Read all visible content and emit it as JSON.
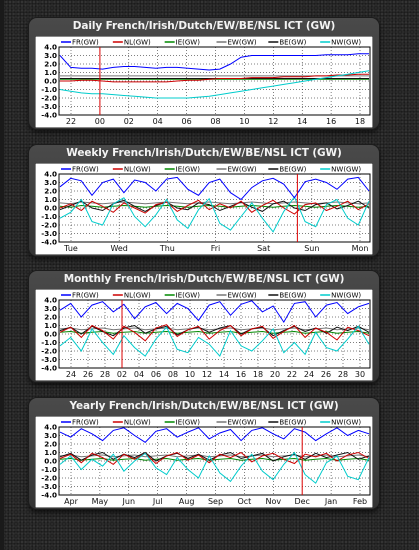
{
  "page": {
    "background": "#2a2a2a"
  },
  "series_colors": {
    "FR(GW)": "#0000ff",
    "NL(GW)": "#cc0000",
    "IE(GW)": "#008800",
    "EW(GW)": "#777777",
    "BE(GW)": "#111111",
    "NW(GW)": "#00cccc"
  },
  "chart_data": [
    {
      "type": "line",
      "title": "Daily French/Irish/Dutch/EW/BE/NSL ICT (GW)",
      "legend": [
        "FR(GW)",
        "NL(GW)",
        "IE(GW)",
        "EW(GW)",
        "BE(GW)",
        "NW(GW)"
      ],
      "legend_placement": "top",
      "ylim": [
        -4.0,
        4.0
      ],
      "y_ticks": [
        "4.0",
        "3.0",
        "2.0",
        "1.0",
        "0.0",
        "-1.0",
        "-2.0",
        "-3.0",
        "-4.0"
      ],
      "x_ticks": [
        "22",
        "00",
        "02",
        "04",
        "06",
        "08",
        "10",
        "12",
        "14",
        "16",
        "18"
      ],
      "grid": true,
      "marker_tick_index": 1,
      "series": [
        {
          "name": "FR(GW)",
          "values": [
            3.0,
            1.6,
            1.5,
            1.5,
            1.4,
            1.6,
            1.7,
            1.7,
            1.6,
            1.5,
            1.6,
            1.6,
            1.5,
            1.4,
            1.3,
            1.4,
            2.0,
            2.8,
            3.0,
            3.0,
            3.0,
            3.0,
            3.0,
            3.0,
            3.0,
            3.1,
            3.1,
            3.1,
            3.2,
            3.2
          ]
        },
        {
          "name": "NL(GW)",
          "values": [
            0.0,
            0.0,
            0.1,
            0.1,
            0.0,
            -0.1,
            -0.1,
            -0.1,
            -0.1,
            -0.1,
            -0.1,
            0.0,
            0.1,
            0.1,
            0.2,
            0.3,
            0.3,
            0.3,
            0.4,
            0.4,
            0.4,
            0.5,
            0.5,
            0.5,
            0.6,
            0.6,
            0.7,
            0.7,
            0.8,
            0.8
          ]
        },
        {
          "name": "IE(GW)",
          "values": [
            0.2,
            0.2,
            0.2,
            0.2,
            0.2,
            0.2,
            0.2,
            0.2,
            0.2,
            0.2,
            0.2,
            0.2,
            0.2,
            0.2,
            0.2,
            0.2,
            0.2,
            0.2,
            0.2,
            0.2,
            0.2,
            0.2,
            0.2,
            0.2,
            0.2,
            0.2,
            0.2,
            0.2,
            0.2,
            0.2
          ]
        },
        {
          "name": "EW(GW)",
          "values": [
            0.6,
            0.6,
            0.6,
            0.6,
            0.6,
            0.6,
            0.6,
            0.6,
            0.6,
            0.6,
            0.6,
            0.6,
            0.6,
            0.6,
            0.6,
            0.6,
            0.6,
            0.6,
            0.6,
            0.6,
            0.6,
            0.6,
            0.6,
            0.6,
            0.6,
            0.6,
            0.6,
            0.6,
            0.6,
            0.6
          ]
        },
        {
          "name": "BE(GW)",
          "values": [
            0.3,
            0.3,
            0.3,
            0.3,
            0.3,
            0.3,
            0.3,
            0.3,
            0.3,
            0.3,
            0.3,
            0.3,
            0.3,
            0.3,
            0.3,
            0.3,
            0.3,
            0.3,
            0.3,
            0.3,
            0.3,
            0.3,
            0.3,
            0.3,
            0.3,
            0.3,
            0.3,
            0.3,
            0.3,
            0.3
          ]
        },
        {
          "name": "NW(GW)",
          "values": [
            -1.0,
            -1.2,
            -1.4,
            -1.5,
            -1.5,
            -1.6,
            -1.7,
            -1.8,
            -1.9,
            -2.0,
            -2.0,
            -2.0,
            -2.0,
            -1.9,
            -1.8,
            -1.6,
            -1.4,
            -1.2,
            -1.0,
            -0.8,
            -0.6,
            -0.4,
            -0.2,
            0.0,
            0.2,
            0.4,
            0.6,
            0.8,
            1.0,
            1.2
          ]
        }
      ]
    },
    {
      "type": "line",
      "title": "Weekly French/Irish/Dutch/EW/BE/NSL ICT (GW)",
      "legend": [
        "FR(GW)",
        "NL(GW)",
        "IE(GW)",
        "EW(GW)",
        "BE(GW)",
        "NW(GW)"
      ],
      "legend_placement": "top",
      "ylim": [
        -4.0,
        4.0
      ],
      "y_ticks": [
        "4.0",
        "3.0",
        "2.0",
        "1.0",
        "0.0",
        "-1.0",
        "-2.0",
        "-3.0",
        "-4.0"
      ],
      "x_ticks": [
        "Tue",
        "Wed",
        "Thu",
        "Fri",
        "Sat",
        "Sun",
        "Mon"
      ],
      "grid": true,
      "marker_tick_index": 4.7,
      "series": [
        {
          "name": "FR(GW)",
          "values": [
            2.5,
            3.5,
            3.2,
            1.5,
            3.0,
            3.4,
            1.8,
            3.3,
            3.0,
            2.0,
            3.4,
            3.6,
            2.2,
            1.5,
            3.0,
            3.4,
            1.8,
            1.0,
            2.4,
            3.2,
            3.5,
            2.8,
            1.2,
            3.1,
            3.4,
            3.0,
            2.2,
            3.4,
            3.6,
            2.0
          ]
        },
        {
          "name": "NL(GW)",
          "values": [
            0.0,
            0.5,
            -0.3,
            0.8,
            0.2,
            -0.5,
            0.6,
            0.0,
            -0.6,
            0.4,
            0.7,
            -0.4,
            0.3,
            0.9,
            -0.2,
            0.5,
            0.0,
            0.8,
            -0.5,
            0.3,
            0.9,
            0.0,
            -0.7,
            0.4,
            0.6,
            -0.3,
            0.2,
            0.8,
            -0.2,
            0.5
          ]
        },
        {
          "name": "IE(GW)",
          "values": [
            0.2,
            0.1,
            0.3,
            0.2,
            0.1,
            0.2,
            0.3,
            0.2,
            0.1,
            0.2,
            0.3,
            0.2,
            0.1,
            0.2,
            0.3,
            0.2,
            0.1,
            0.2,
            0.3,
            0.2,
            0.1,
            0.2,
            0.3,
            0.2,
            0.1,
            0.2,
            0.3,
            0.2,
            0.1,
            0.2
          ]
        },
        {
          "name": "EW(GW)",
          "values": [
            0.6,
            0.5,
            0.7,
            0.6,
            0.5,
            0.6,
            0.7,
            0.6,
            0.5,
            0.6,
            0.7,
            0.6,
            0.5,
            0.6,
            0.7,
            0.6,
            0.5,
            0.6,
            0.7,
            0.6,
            0.5,
            0.6,
            0.7,
            0.6,
            0.5,
            0.6,
            0.7,
            0.6,
            0.5,
            0.6
          ]
        },
        {
          "name": "BE(GW)",
          "values": [
            -0.2,
            0.3,
            0.8,
            0.0,
            -0.3,
            0.5,
            0.9,
            0.2,
            -0.4,
            0.3,
            0.7,
            0.0,
            -0.2,
            0.6,
            0.4,
            -0.3,
            0.2,
            0.7,
            0.1,
            -0.4,
            0.5,
            0.8,
            0.0,
            -0.3,
            0.4,
            0.6,
            -0.1,
            0.3,
            0.8,
            0.0
          ]
        },
        {
          "name": "NW(GW)",
          "values": [
            -1.2,
            -0.5,
            1.0,
            -1.6,
            -2.0,
            0.5,
            1.2,
            -1.0,
            -2.2,
            -0.8,
            1.0,
            -1.4,
            -2.4,
            -0.2,
            1.1,
            -1.8,
            -2.6,
            -1.0,
            0.6,
            -1.2,
            -2.8,
            -0.4,
            1.3,
            -1.6,
            -2.2,
            0.4,
            1.0,
            -1.2,
            -2.0,
            0.8
          ]
        }
      ]
    },
    {
      "type": "line",
      "title": "Monthly French/Irish/Dutch/EW/BE/NSL ICT (GW)",
      "legend": [
        "FR(GW)",
        "NL(GW)",
        "IE(GW)",
        "EW(GW)",
        "BE(GW)",
        "NW(GW)"
      ],
      "legend_placement": "top",
      "ylim": [
        -4.0,
        4.0
      ],
      "y_ticks": [
        "4.0",
        "3.0",
        "2.0",
        "1.0",
        "0.0",
        "-1.0",
        "-2.0",
        "-3.0",
        "-4.0"
      ],
      "x_ticks": [
        "24",
        "26",
        "28",
        "02",
        "04",
        "06",
        "08",
        "10",
        "12",
        "14",
        "16",
        "18",
        "20",
        "22",
        "24",
        "26",
        "28",
        "30"
      ],
      "grid": true,
      "marker_tick_index": 3,
      "series": [
        {
          "name": "FR(GW)",
          "values": [
            2.8,
            3.6,
            2.0,
            3.4,
            3.8,
            2.6,
            3.5,
            1.8,
            3.2,
            3.7,
            2.4,
            3.6,
            3.0,
            1.6,
            3.4,
            3.8,
            2.2,
            3.5,
            3.9,
            2.6,
            3.3,
            1.4,
            3.6,
            3.8,
            2.0,
            3.4,
            3.7,
            2.4,
            3.2,
            3.6
          ]
        },
        {
          "name": "NL(GW)",
          "values": [
            0.2,
            0.8,
            -0.4,
            1.0,
            0.4,
            -0.6,
            0.9,
            0.2,
            -0.8,
            0.7,
            1.1,
            -0.3,
            0.5,
            0.9,
            -0.6,
            0.4,
            1.0,
            -0.2,
            0.6,
            0.9,
            -0.5,
            0.3,
            1.0,
            -0.4,
            0.7,
            0.2,
            -0.7,
            0.8,
            0.4,
            -0.2
          ]
        },
        {
          "name": "IE(GW)",
          "values": [
            0.2,
            0.3,
            0.1,
            0.2,
            0.3,
            0.1,
            0.2,
            0.3,
            0.1,
            0.2,
            0.3,
            0.1,
            0.2,
            0.3,
            0.1,
            0.2,
            0.3,
            0.1,
            0.2,
            0.3,
            0.1,
            0.2,
            0.3,
            0.1,
            0.2,
            0.3,
            0.1,
            0.2,
            0.3,
            0.1
          ]
        },
        {
          "name": "EW(GW)",
          "values": [
            0.6,
            0.7,
            0.5,
            0.6,
            0.7,
            0.5,
            0.6,
            0.7,
            0.5,
            0.6,
            0.7,
            0.5,
            0.6,
            0.7,
            0.5,
            0.6,
            0.7,
            0.5,
            0.6,
            0.7,
            0.5,
            0.6,
            0.7,
            0.5,
            0.6,
            0.7,
            0.5,
            0.6,
            0.7,
            0.5
          ]
        },
        {
          "name": "BE(GW)",
          "values": [
            0.4,
            0.8,
            0.0,
            0.9,
            0.3,
            -0.2,
            0.7,
            1.0,
            0.1,
            0.6,
            0.9,
            -0.1,
            0.5,
            0.8,
            0.2,
            0.7,
            1.0,
            0.0,
            0.6,
            0.8,
            -0.2,
            0.4,
            0.9,
            0.3,
            0.7,
            0.1,
            0.8,
            0.4,
            0.9,
            0.2
          ]
        },
        {
          "name": "NW(GW)",
          "values": [
            -1.4,
            -0.4,
            -2.0,
            0.6,
            -1.0,
            -2.4,
            -0.2,
            -1.6,
            -2.6,
            -0.6,
            0.8,
            -1.8,
            -2.2,
            -0.4,
            -1.2,
            -2.6,
            0.4,
            -1.4,
            -2.0,
            -0.8,
            0.6,
            -2.2,
            -1.0,
            -2.4,
            0.2,
            -1.6,
            -2.0,
            -0.6,
            0.9,
            -1.2
          ]
        }
      ]
    },
    {
      "type": "line",
      "title": "Yearly French/Irish/Dutch/EW/BE/NSL ICT (GW)",
      "legend": [
        "FR(GW)",
        "NL(GW)",
        "IE(GW)",
        "EW(GW)",
        "BE(GW)",
        "NW(GW)"
      ],
      "legend_placement": "top",
      "ylim": [
        -4.0,
        4.0
      ],
      "y_ticks": [
        "4.0",
        "3.0",
        "2.0",
        "1.0",
        "0.0",
        "-1.0",
        "-2.0",
        "-3.0",
        "-4.0"
      ],
      "x_ticks": [
        "Apr",
        "May",
        "Jun",
        "Jul",
        "Aug",
        "Sep",
        "Oct",
        "Nov",
        "Dec",
        "Jan",
        "Feb"
      ],
      "grid": true,
      "marker_tick_index": 8,
      "series": [
        {
          "name": "FR(GW)",
          "values": [
            3.4,
            2.8,
            3.8,
            3.2,
            2.4,
            3.6,
            3.9,
            3.0,
            2.2,
            3.5,
            3.8,
            2.8,
            3.4,
            3.9,
            2.6,
            3.3,
            3.7,
            2.4,
            3.6,
            3.9,
            3.2,
            2.6,
            3.8,
            3.4,
            2.4,
            3.2,
            3.9,
            3.0,
            3.6,
            3.2
          ]
        },
        {
          "name": "NL(GW)",
          "values": [
            0.3,
            0.8,
            -0.2,
            0.9,
            0.4,
            -0.4,
            0.8,
            0.2,
            0.9,
            -0.3,
            0.6,
            1.0,
            0.1,
            0.7,
            -0.2,
            0.8,
            0.4,
            1.0,
            -0.1,
            0.6,
            0.9,
            0.2,
            -0.3,
            0.8,
            0.5,
            0.9,
            0.0,
            0.7,
            1.0,
            0.3
          ]
        },
        {
          "name": "IE(GW)",
          "values": [
            0.2,
            0.3,
            0.1,
            0.2,
            0.3,
            0.1,
            0.2,
            0.3,
            0.1,
            0.2,
            0.3,
            0.1,
            0.2,
            0.3,
            0.1,
            0.2,
            0.3,
            0.1,
            0.2,
            0.3,
            0.1,
            0.2,
            0.3,
            0.1,
            0.2,
            0.3,
            0.1,
            0.2,
            0.3,
            0.1
          ]
        },
        {
          "name": "EW(GW)",
          "values": [
            0.6,
            0.7,
            0.5,
            0.6,
            0.7,
            0.5,
            0.6,
            0.7,
            0.5,
            0.6,
            0.7,
            0.5,
            0.6,
            0.7,
            0.5,
            0.6,
            0.7,
            0.5,
            0.6,
            0.7,
            0.5,
            0.6,
            0.7,
            0.5,
            0.6,
            0.7,
            0.5,
            0.6,
            0.7,
            0.5
          ]
        },
        {
          "name": "BE(GW)",
          "values": [
            0.5,
            0.9,
            0.1,
            0.7,
            1.0,
            0.2,
            0.8,
            0.4,
            1.0,
            0.0,
            0.6,
            0.9,
            0.3,
            0.8,
            0.1,
            0.7,
            1.0,
            0.3,
            0.6,
            0.9,
            0.0,
            0.5,
            0.8,
            0.2,
            0.9,
            0.4,
            0.7,
            1.0,
            0.2,
            0.6
          ]
        },
        {
          "name": "NW(GW)",
          "values": [
            -0.4,
            0.6,
            -1.0,
            0.2,
            -0.6,
            0.8,
            -1.2,
            0.0,
            0.9,
            -0.8,
            -1.6,
            0.4,
            -1.0,
            -2.0,
            0.6,
            -1.4,
            -2.4,
            -0.6,
            0.8,
            -1.2,
            -2.2,
            -0.4,
            1.0,
            -1.6,
            -2.6,
            -0.2,
            0.6,
            -1.8,
            -2.2,
            0.4
          ]
        }
      ]
    }
  ]
}
